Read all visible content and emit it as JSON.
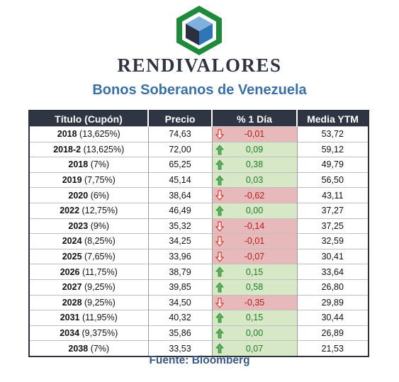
{
  "brand": "RENDIVALORES",
  "subtitle": "Bonos Soberanos de Venezuela",
  "table": {
    "headers": [
      "Título (Cupón)",
      "Precio",
      "% 1 Día",
      "Media YTM"
    ],
    "rows": [
      {
        "year": "2018",
        "coupon": " (13,625%)",
        "price": "74,63",
        "change": "-0,01",
        "direction": "down",
        "ytm": "53,72"
      },
      {
        "year": "2018-2",
        "coupon": " (13,625%)",
        "price": "72,00",
        "change": "0,09",
        "direction": "up",
        "ytm": "59,12"
      },
      {
        "year": "2018",
        "coupon": " (7%)",
        "price": "65,25",
        "change": "0,38",
        "direction": "up",
        "ytm": "49,79"
      },
      {
        "year": "2019",
        "coupon": " (7,75%)",
        "price": "45,14",
        "change": "0,03",
        "direction": "up",
        "ytm": "56,50"
      },
      {
        "year": "2020",
        "coupon": " (6%)",
        "price": "38,64",
        "change": "-0,62",
        "direction": "down",
        "ytm": "43,11"
      },
      {
        "year": "2022",
        "coupon": " (12,75%)",
        "price": "46,49",
        "change": "0,00",
        "direction": "up",
        "ytm": "37,27"
      },
      {
        "year": "2023",
        "coupon": " (9%)",
        "price": "35,32",
        "change": "-0,14",
        "direction": "down",
        "ytm": "37,25"
      },
      {
        "year": "2024",
        "coupon": " (8,25%)",
        "price": "34,25",
        "change": "-0,01",
        "direction": "down",
        "ytm": "32,59"
      },
      {
        "year": "2025",
        "coupon": " (7,65%)",
        "price": "33,96",
        "change": "-0,07",
        "direction": "down",
        "ytm": "30,41"
      },
      {
        "year": "2026",
        "coupon": " (11,75%)",
        "price": "38,79",
        "change": "0,15",
        "direction": "up",
        "ytm": "33,64"
      },
      {
        "year": "2027",
        "coupon": " (9,25%)",
        "price": "39,85",
        "change": "0,58",
        "direction": "up",
        "ytm": "26,80"
      },
      {
        "year": "2028",
        "coupon": " (9,25%)",
        "price": "34,50",
        "change": "-0,35",
        "direction": "down",
        "ytm": "29,89"
      },
      {
        "year": "2031",
        "coupon": " (11,95%)",
        "price": "40,32",
        "change": "0,15",
        "direction": "up",
        "ytm": "30,44"
      },
      {
        "year": "2034",
        "coupon": " (9,375%)",
        "price": "35,86",
        "change": "0,00",
        "direction": "up",
        "ytm": "26,89"
      },
      {
        "year": "2038",
        "coupon": " (7%)",
        "price": "33,53",
        "change": "0,07",
        "direction": "up",
        "ytm": "21,53"
      }
    ]
  },
  "source": "Fuente: Bloomberg",
  "colors": {
    "header_bg": "#2f3542",
    "down_bg": "#e8b9ba",
    "up_bg": "#d7e8c7",
    "down_text": "#b0201c",
    "up_text": "#227a2a",
    "subtitle": "#3a6fa5",
    "logo_green": "#1f8a3a",
    "logo_blue": "#2f74b5"
  },
  "icons": {
    "logo": "hexagon-cube-logo",
    "down": "arrow-down-icon",
    "up": "arrow-up-icon"
  }
}
